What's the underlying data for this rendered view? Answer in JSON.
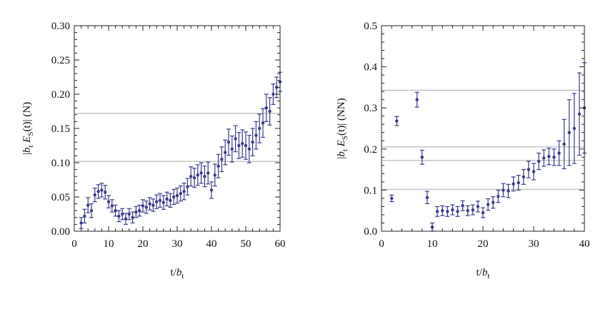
{
  "chart_data": [
    {
      "type": "scatter",
      "id": "left",
      "xlabel": {
        "main": "t/",
        "var": "b",
        "sub": "t"
      },
      "ylabel": {
        "open": "|",
        "var1": "b",
        "sub1": "t",
        "var2": "E",
        "sub2": "S",
        "rest": "(t)| (N)"
      },
      "xlim": [
        0,
        60
      ],
      "ylim": [
        0,
        0.3
      ],
      "xticks": [
        0,
        10,
        20,
        30,
        40,
        50,
        60
      ],
      "xtick_labels": [
        "0",
        "10",
        "20",
        "30",
        "40",
        "50",
        "60"
      ],
      "yticks": [
        0,
        0.05,
        0.1,
        0.15,
        0.2,
        0.25,
        0.3
      ],
      "ytick_labels": [
        "0.00",
        "0.05",
        "0.10",
        "0.15",
        "0.20",
        "0.25",
        "0.30"
      ],
      "hlines": [
        0.102,
        0.172
      ],
      "points": [
        [
          2,
          0.012,
          0.008
        ],
        [
          3,
          0.022,
          0.01
        ],
        [
          4,
          0.038,
          0.011
        ],
        [
          5,
          0.03,
          0.01
        ],
        [
          6,
          0.053,
          0.01
        ],
        [
          7,
          0.058,
          0.01
        ],
        [
          8,
          0.06,
          0.01
        ],
        [
          9,
          0.057,
          0.01
        ],
        [
          10,
          0.043,
          0.009
        ],
        [
          11,
          0.037,
          0.009
        ],
        [
          12,
          0.03,
          0.008
        ],
        [
          13,
          0.022,
          0.008
        ],
        [
          14,
          0.025,
          0.008
        ],
        [
          15,
          0.018,
          0.008
        ],
        [
          16,
          0.025,
          0.008
        ],
        [
          17,
          0.02,
          0.008
        ],
        [
          18,
          0.028,
          0.008
        ],
        [
          19,
          0.03,
          0.008
        ],
        [
          20,
          0.037,
          0.009
        ],
        [
          21,
          0.035,
          0.009
        ],
        [
          22,
          0.04,
          0.009
        ],
        [
          23,
          0.038,
          0.009
        ],
        [
          24,
          0.043,
          0.01
        ],
        [
          25,
          0.045,
          0.01
        ],
        [
          26,
          0.042,
          0.01
        ],
        [
          27,
          0.047,
          0.01
        ],
        [
          28,
          0.045,
          0.01
        ],
        [
          29,
          0.05,
          0.011
        ],
        [
          30,
          0.052,
          0.011
        ],
        [
          31,
          0.055,
          0.011
        ],
        [
          32,
          0.058,
          0.012
        ],
        [
          33,
          0.065,
          0.012
        ],
        [
          34,
          0.08,
          0.014
        ],
        [
          35,
          0.078,
          0.014
        ],
        [
          36,
          0.082,
          0.015
        ],
        [
          37,
          0.085,
          0.015
        ],
        [
          38,
          0.08,
          0.015
        ],
        [
          39,
          0.085,
          0.016
        ],
        [
          40,
          0.06,
          0.012
        ],
        [
          41,
          0.082,
          0.016
        ],
        [
          42,
          0.095,
          0.017
        ],
        [
          43,
          0.105,
          0.018
        ],
        [
          44,
          0.115,
          0.018
        ],
        [
          45,
          0.13,
          0.019
        ],
        [
          46,
          0.12,
          0.019
        ],
        [
          47,
          0.135,
          0.019
        ],
        [
          48,
          0.125,
          0.019
        ],
        [
          49,
          0.128,
          0.02
        ],
        [
          50,
          0.125,
          0.02
        ],
        [
          51,
          0.12,
          0.02
        ],
        [
          52,
          0.13,
          0.02
        ],
        [
          53,
          0.14,
          0.02
        ],
        [
          54,
          0.15,
          0.021
        ],
        [
          55,
          0.158,
          0.021
        ],
        [
          56,
          0.18,
          0.02
        ],
        [
          57,
          0.175,
          0.02
        ],
        [
          58,
          0.2,
          0.015
        ],
        [
          59,
          0.21,
          0.015
        ],
        [
          60,
          0.218,
          0.014
        ]
      ]
    },
    {
      "type": "scatter",
      "id": "right",
      "xlabel": {
        "main": "t/",
        "var": "b",
        "sub": "t"
      },
      "ylabel": {
        "open": "|",
        "var1": "b",
        "sub1": "t",
        "var2": "E",
        "sub2": "S",
        "rest": "(t)| (NN)"
      },
      "xlim": [
        0,
        40
      ],
      "ylim": [
        0,
        0.5
      ],
      "xticks": [
        0,
        10,
        20,
        30,
        40
      ],
      "xtick_labels": [
        "0",
        "10",
        "20",
        "30",
        "40"
      ],
      "yticks": [
        0,
        0.1,
        0.2,
        0.3,
        0.4,
        0.5
      ],
      "ytick_labels": [
        "0.0",
        "0.1",
        "0.2",
        "0.3",
        "0.4",
        "0.5"
      ],
      "hlines": [
        0.102,
        0.172,
        0.205,
        0.343
      ],
      "points": [
        [
          2,
          0.08,
          0.008
        ],
        [
          3,
          0.268,
          0.011
        ],
        [
          7,
          0.32,
          0.018
        ],
        [
          8,
          0.18,
          0.017
        ],
        [
          9,
          0.082,
          0.015
        ],
        [
          10,
          0.01,
          0.01
        ],
        [
          11,
          0.048,
          0.012
        ],
        [
          12,
          0.05,
          0.012
        ],
        [
          13,
          0.048,
          0.012
        ],
        [
          14,
          0.052,
          0.012
        ],
        [
          15,
          0.048,
          0.012
        ],
        [
          16,
          0.062,
          0.012
        ],
        [
          17,
          0.05,
          0.012
        ],
        [
          18,
          0.052,
          0.012
        ],
        [
          19,
          0.06,
          0.013
        ],
        [
          20,
          0.045,
          0.012
        ],
        [
          21,
          0.065,
          0.014
        ],
        [
          22,
          0.07,
          0.014
        ],
        [
          23,
          0.085,
          0.015
        ],
        [
          24,
          0.1,
          0.016
        ],
        [
          25,
          0.098,
          0.016
        ],
        [
          26,
          0.115,
          0.017
        ],
        [
          27,
          0.118,
          0.018
        ],
        [
          28,
          0.132,
          0.018
        ],
        [
          29,
          0.15,
          0.02
        ],
        [
          30,
          0.145,
          0.02
        ],
        [
          31,
          0.17,
          0.02
        ],
        [
          32,
          0.178,
          0.02
        ],
        [
          33,
          0.182,
          0.02
        ],
        [
          34,
          0.18,
          0.02
        ],
        [
          35,
          0.19,
          0.03
        ],
        [
          36,
          0.212,
          0.06
        ],
        [
          37,
          0.24,
          0.08
        ],
        [
          38,
          0.25,
          0.085
        ],
        [
          39,
          0.285,
          0.1
        ],
        [
          40,
          0.3,
          0.11
        ]
      ]
    }
  ]
}
